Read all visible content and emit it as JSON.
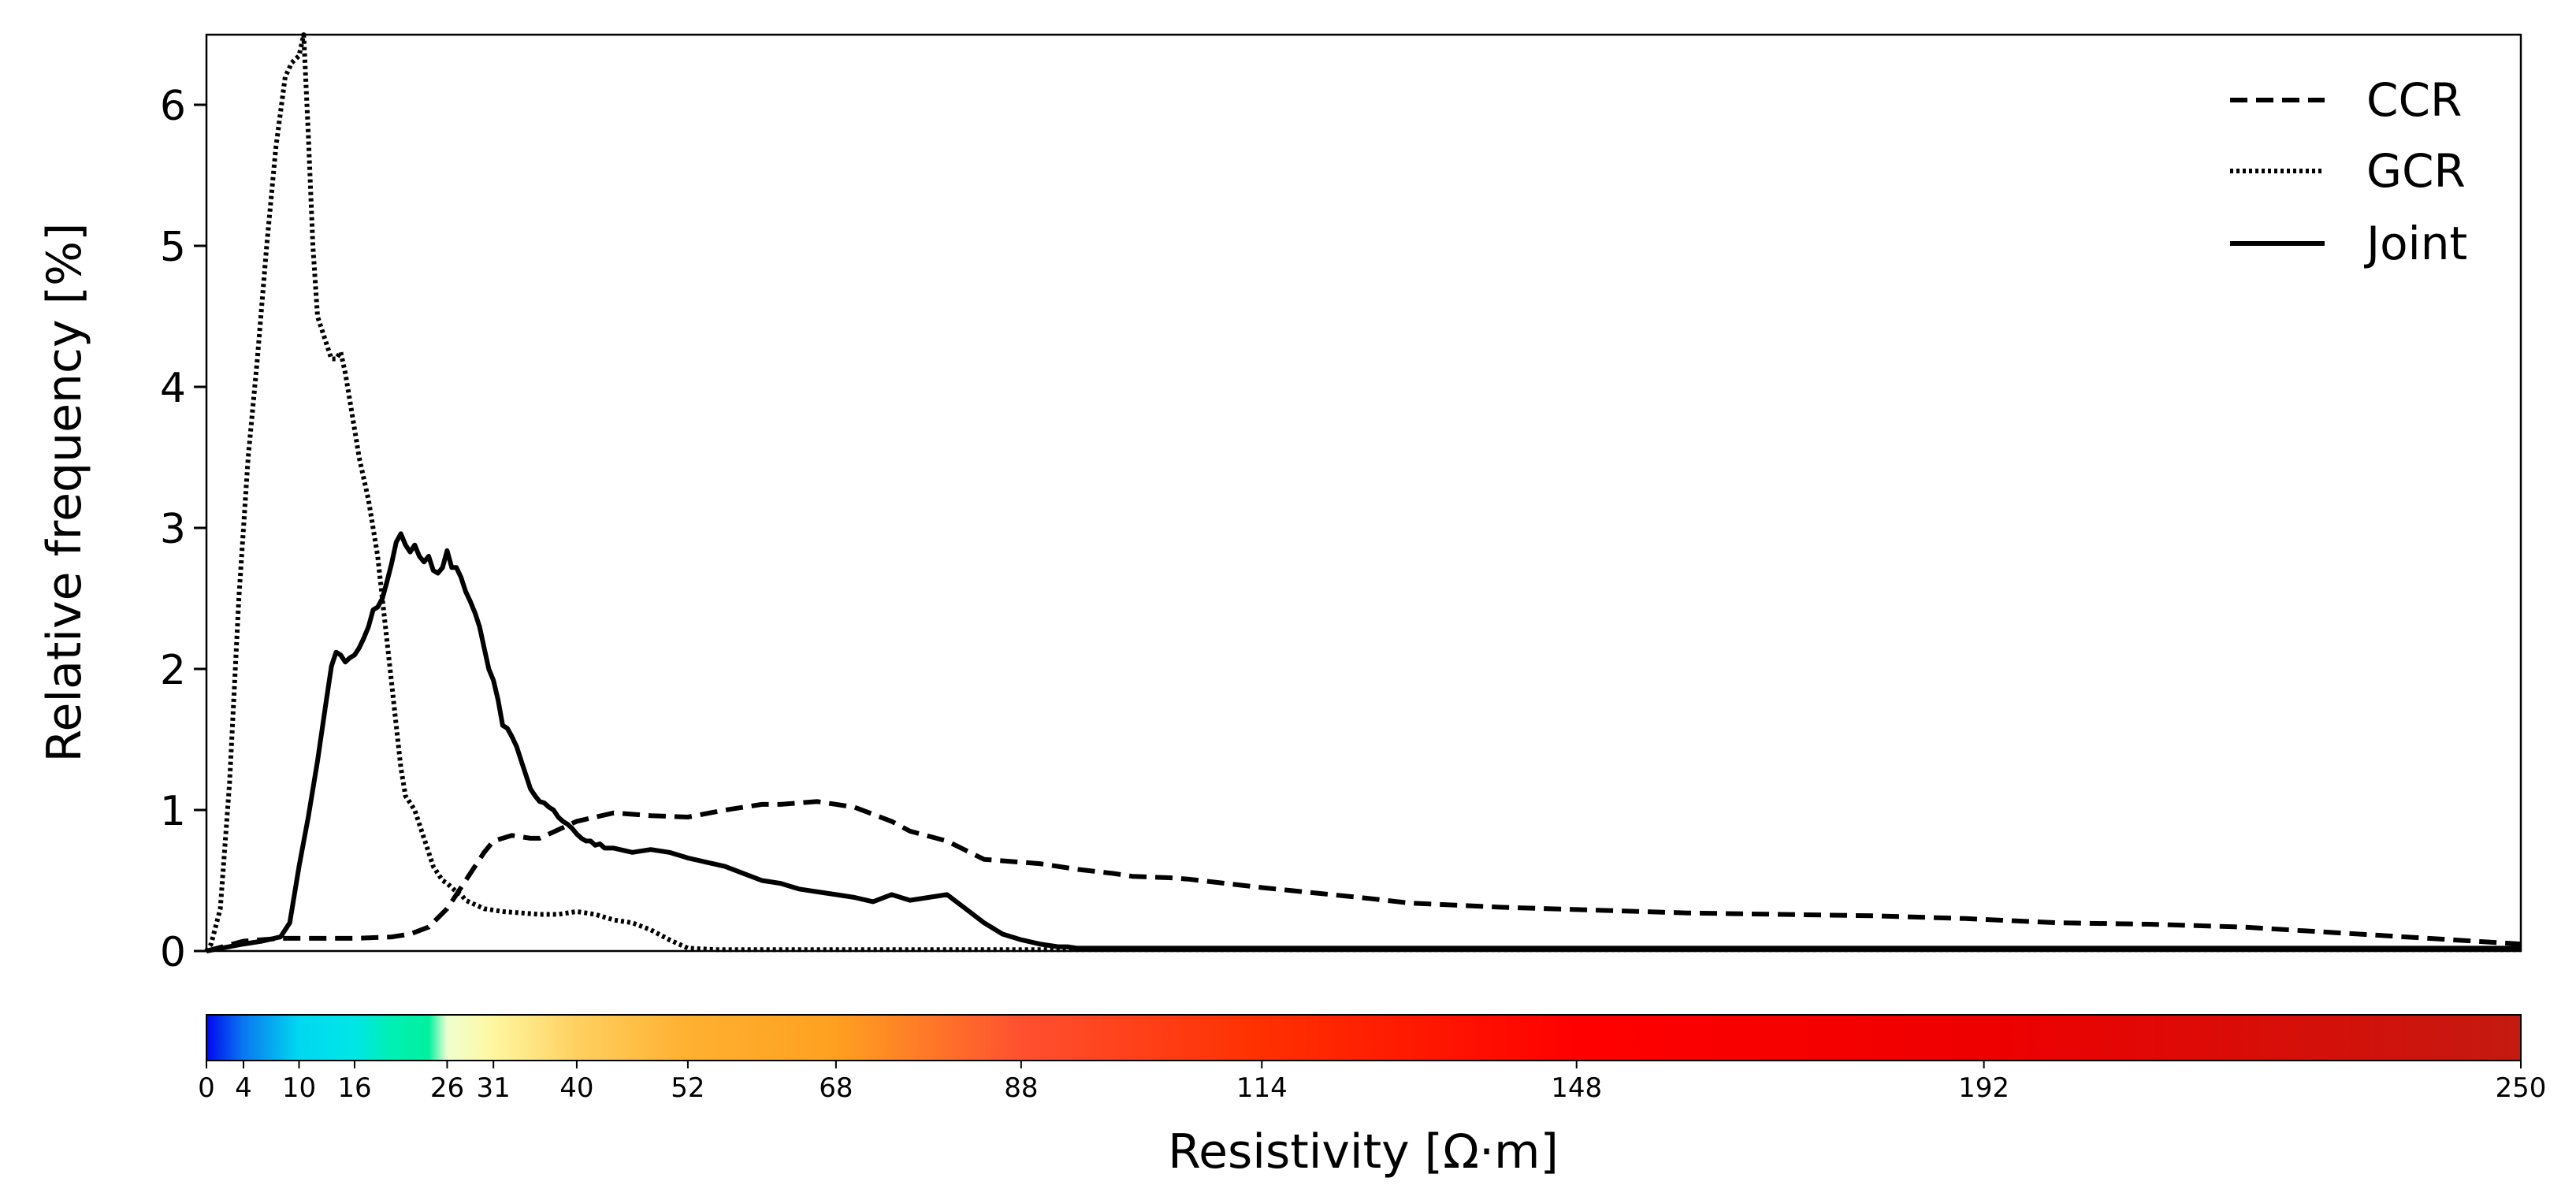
{
  "chart_data": {
    "type": "line",
    "title": "",
    "xlabel": "Resistivity [Ω·m]",
    "ylabel": "Relative frequency [%]",
    "xlim": [
      0,
      250
    ],
    "ylim": [
      0,
      6.5
    ],
    "yticks": [
      "0",
      "1",
      "2",
      "3",
      "4",
      "5",
      "6"
    ],
    "colorbar": {
      "ticks": [
        "0",
        "4",
        "10",
        "16",
        "26",
        "31",
        "40",
        "52",
        "68",
        "88",
        "114",
        "148",
        "192",
        "250"
      ],
      "stops": [
        {
          "v": 0,
          "color": "#0008f0"
        },
        {
          "v": 4,
          "color": "#0a78f0"
        },
        {
          "v": 10,
          "color": "#00d8f0"
        },
        {
          "v": 16,
          "color": "#00e6e6"
        },
        {
          "v": 20,
          "color": "#00f0b4"
        },
        {
          "v": 24,
          "color": "#00f0a0"
        },
        {
          "v": 26,
          "color": "#f0ffd0"
        },
        {
          "v": 31,
          "color": "#fff7a0"
        },
        {
          "v": 40,
          "color": "#ffd060"
        },
        {
          "v": 52,
          "color": "#ffb030"
        },
        {
          "v": 68,
          "color": "#ffa020"
        },
        {
          "v": 88,
          "color": "#ff5030"
        },
        {
          "v": 114,
          "color": "#ff3000"
        },
        {
          "v": 148,
          "color": "#ff0000"
        },
        {
          "v": 192,
          "color": "#ee0000"
        },
        {
          "v": 250,
          "color": "#c41a10"
        }
      ]
    },
    "legend": {
      "position": "top-right",
      "entries": [
        {
          "name": "CCR",
          "style": "dashed"
        },
        {
          "name": "GCR",
          "style": "dotted"
        },
        {
          "name": "Joint",
          "style": "solid"
        }
      ]
    },
    "series": [
      {
        "name": "CCR",
        "style": "dashed",
        "x": [
          0,
          4,
          8,
          12,
          16,
          20,
          22,
          24,
          26,
          28,
          30,
          31,
          33,
          35,
          36,
          38,
          40,
          44,
          48,
          52,
          56,
          60,
          62,
          66,
          70,
          74,
          76,
          80,
          84,
          86,
          90,
          94,
          98,
          100,
          104,
          106,
          110,
          114,
          120,
          126,
          130,
          140,
          150,
          160,
          170,
          180,
          190,
          200,
          210,
          220,
          225,
          230,
          240,
          250
        ],
        "y": [
          0.0,
          0.07,
          0.09,
          0.09,
          0.09,
          0.1,
          0.12,
          0.17,
          0.3,
          0.5,
          0.7,
          0.78,
          0.82,
          0.8,
          0.8,
          0.86,
          0.92,
          0.98,
          0.96,
          0.95,
          1.0,
          1.04,
          1.04,
          1.06,
          1.02,
          0.92,
          0.85,
          0.78,
          0.65,
          0.64,
          0.62,
          0.58,
          0.55,
          0.53,
          0.52,
          0.51,
          0.48,
          0.45,
          0.41,
          0.37,
          0.34,
          0.31,
          0.29,
          0.27,
          0.26,
          0.25,
          0.23,
          0.2,
          0.19,
          0.17,
          0.15,
          0.13,
          0.09,
          0.05
        ]
      },
      {
        "name": "GCR",
        "style": "dotted",
        "x": [
          0,
          0.5,
          1.5,
          2.5,
          3.5,
          4.5,
          5.5,
          6.5,
          7.5,
          8.5,
          9.2,
          10.0,
          10.5,
          11.0,
          11.5,
          12.0,
          12.5,
          13.0,
          13.5,
          14.0,
          14.5,
          15.0,
          15.5,
          16.0,
          16.5,
          17.0,
          17.5,
          18.0,
          18.5,
          19.0,
          19.5,
          20.0,
          20.5,
          21.0,
          21.5,
          22.0,
          22.5,
          23.0,
          23.5,
          24.0,
          24.5,
          25.0,
          25.5,
          26.0,
          26.5,
          27.0,
          27.5,
          28.0,
          29,
          30,
          32,
          34,
          36,
          38,
          40,
          42,
          44,
          46,
          48,
          50,
          52,
          55,
          60,
          80,
          250
        ],
        "y": [
          0.0,
          0.05,
          0.3,
          1.2,
          2.5,
          3.5,
          4.2,
          5.0,
          5.7,
          6.2,
          6.3,
          6.35,
          6.5,
          5.8,
          5.0,
          4.5,
          4.4,
          4.3,
          4.2,
          4.2,
          4.25,
          4.1,
          3.9,
          3.7,
          3.5,
          3.35,
          3.2,
          3.0,
          2.8,
          2.5,
          2.2,
          1.9,
          1.6,
          1.3,
          1.1,
          1.05,
          1.0,
          0.9,
          0.8,
          0.7,
          0.6,
          0.55,
          0.5,
          0.48,
          0.45,
          0.42,
          0.4,
          0.36,
          0.33,
          0.3,
          0.28,
          0.27,
          0.26,
          0.26,
          0.28,
          0.26,
          0.22,
          0.2,
          0.15,
          0.08,
          0.02,
          0.01,
          0.01,
          0.01,
          0.01
        ]
      },
      {
        "name": "Joint",
        "style": "solid",
        "x": [
          0,
          4,
          6,
          8,
          9,
          10,
          11,
          11.5,
          12,
          13,
          13.5,
          14,
          14.5,
          15,
          15.5,
          16,
          16.5,
          17,
          17.5,
          18,
          18.5,
          19,
          19.5,
          20,
          20.5,
          21,
          21.5,
          22,
          22.5,
          23,
          23.5,
          24,
          24.5,
          25,
          25.5,
          26,
          26.5,
          27,
          27.5,
          28,
          28.5,
          29,
          29.5,
          30,
          30.5,
          31,
          31.5,
          32,
          32.5,
          33,
          33.5,
          34,
          34.5,
          35,
          35.5,
          36,
          36.5,
          37,
          37.5,
          38,
          38.5,
          39,
          39.5,
          40,
          40.5,
          41,
          41.5,
          42,
          42.5,
          43,
          44,
          46,
          48,
          50,
          52,
          54,
          56,
          58,
          60,
          62,
          64,
          66,
          68,
          70,
          72,
          74,
          76,
          78,
          80,
          82,
          84,
          86,
          88,
          90,
          92,
          93,
          94,
          95,
          96,
          100,
          110,
          250
        ],
        "y": [
          0.0,
          0.05,
          0.07,
          0.1,
          0.2,
          0.6,
          0.95,
          1.15,
          1.35,
          1.8,
          2.02,
          2.12,
          2.1,
          2.05,
          2.08,
          2.1,
          2.15,
          2.22,
          2.3,
          2.42,
          2.44,
          2.5,
          2.62,
          2.75,
          2.9,
          2.96,
          2.88,
          2.83,
          2.88,
          2.8,
          2.76,
          2.8,
          2.7,
          2.68,
          2.72,
          2.84,
          2.72,
          2.72,
          2.65,
          2.55,
          2.48,
          2.4,
          2.3,
          2.15,
          2.0,
          1.92,
          1.78,
          1.6,
          1.58,
          1.52,
          1.45,
          1.35,
          1.25,
          1.15,
          1.1,
          1.06,
          1.05,
          1.02,
          1.0,
          0.95,
          0.92,
          0.9,
          0.87,
          0.83,
          0.8,
          0.78,
          0.78,
          0.75,
          0.76,
          0.73,
          0.73,
          0.7,
          0.72,
          0.7,
          0.66,
          0.63,
          0.6,
          0.55,
          0.5,
          0.48,
          0.44,
          0.42,
          0.4,
          0.38,
          0.35,
          0.4,
          0.36,
          0.38,
          0.4,
          0.3,
          0.2,
          0.12,
          0.08,
          0.05,
          0.03,
          0.03,
          0.02,
          0.02,
          0.02,
          0.02,
          0.02,
          0.02
        ]
      }
    ]
  }
}
